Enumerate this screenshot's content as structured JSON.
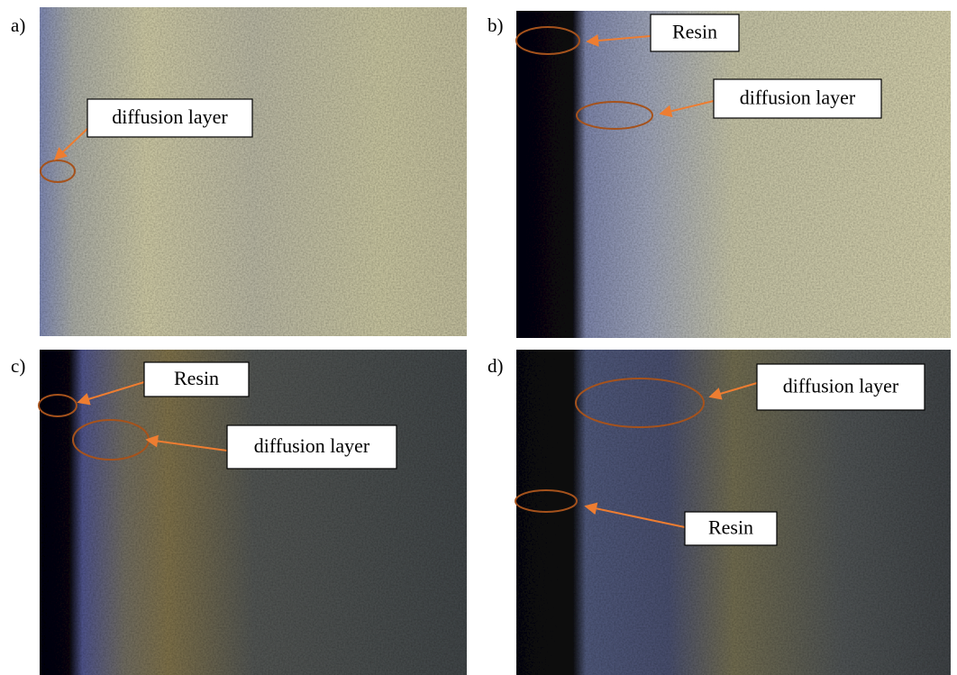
{
  "panels": [
    {
      "label": "a)",
      "annotations": [
        {
          "text": "diffusion layer"
        }
      ]
    },
    {
      "label": "b)",
      "annotations": [
        {
          "text": "Resin"
        },
        {
          "text": "diffusion layer"
        }
      ]
    },
    {
      "label": "c)",
      "annotations": [
        {
          "text": "Resin"
        },
        {
          "text": "diffusion layer"
        }
      ]
    },
    {
      "label": "d)",
      "annotations": [
        {
          "text": "diffusion layer"
        },
        {
          "text": "Resin"
        }
      ]
    }
  ]
}
